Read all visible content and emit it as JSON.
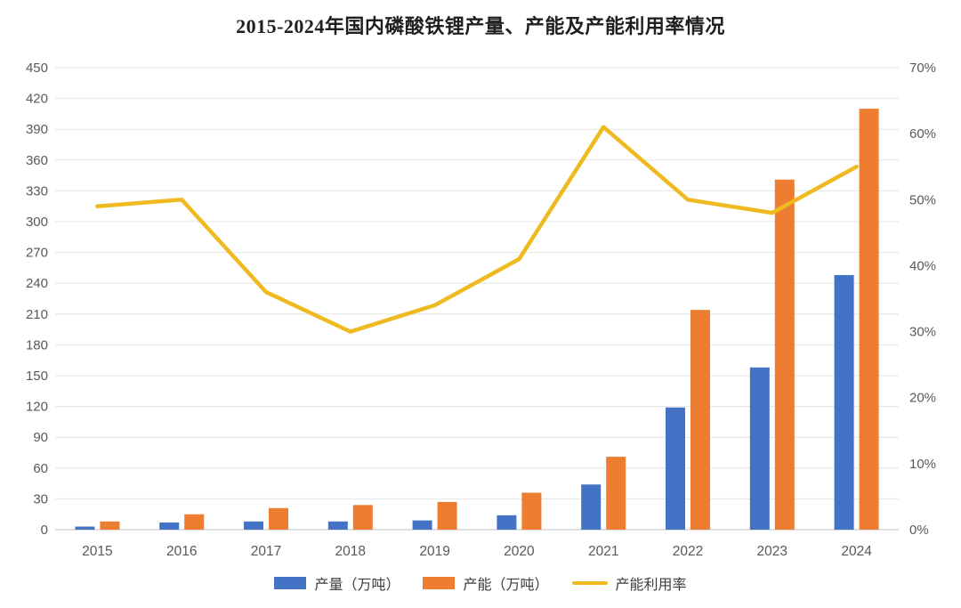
{
  "title": "2015-2024年国内磷酸铁锂产量、产能及产能利用率情况",
  "chart_data": {
    "type": "bar",
    "subtype": "combo-bar-line-dual-axis",
    "title": "2015-2024年国内磷酸铁锂产量、产能及产能利用率情况",
    "categories": [
      "2015",
      "2016",
      "2017",
      "2018",
      "2019",
      "2020",
      "2021",
      "2022",
      "2023",
      "2024"
    ],
    "series": [
      {
        "name": "产量（万吨）",
        "type": "bar",
        "axis": "left",
        "color": "#4472C4",
        "values": [
          3,
          7,
          8,
          8,
          9,
          14,
          44,
          119,
          158,
          248
        ]
      },
      {
        "name": "产能（万吨）",
        "type": "bar",
        "axis": "left",
        "color": "#ED7D31",
        "values": [
          8,
          15,
          21,
          24,
          27,
          36,
          71,
          214,
          341,
          410
        ]
      },
      {
        "name": "产能利用率",
        "type": "line",
        "axis": "right",
        "color": "#EFB920",
        "values": [
          49,
          50,
          36,
          30,
          34,
          41,
          61,
          50,
          48,
          55
        ],
        "suffix": "%"
      }
    ],
    "left_axis": {
      "min": 0,
      "max": 450,
      "step": 30,
      "suffix": ""
    },
    "right_axis": {
      "min": 0,
      "max": 70,
      "step": 10,
      "suffix": "%"
    },
    "grid": true,
    "legend_position": "bottom",
    "colors": {
      "gridline": "#e4e4e4",
      "axis_line": "#c0c0c0",
      "tick_label": "#595959",
      "background": "#ffffff"
    }
  }
}
